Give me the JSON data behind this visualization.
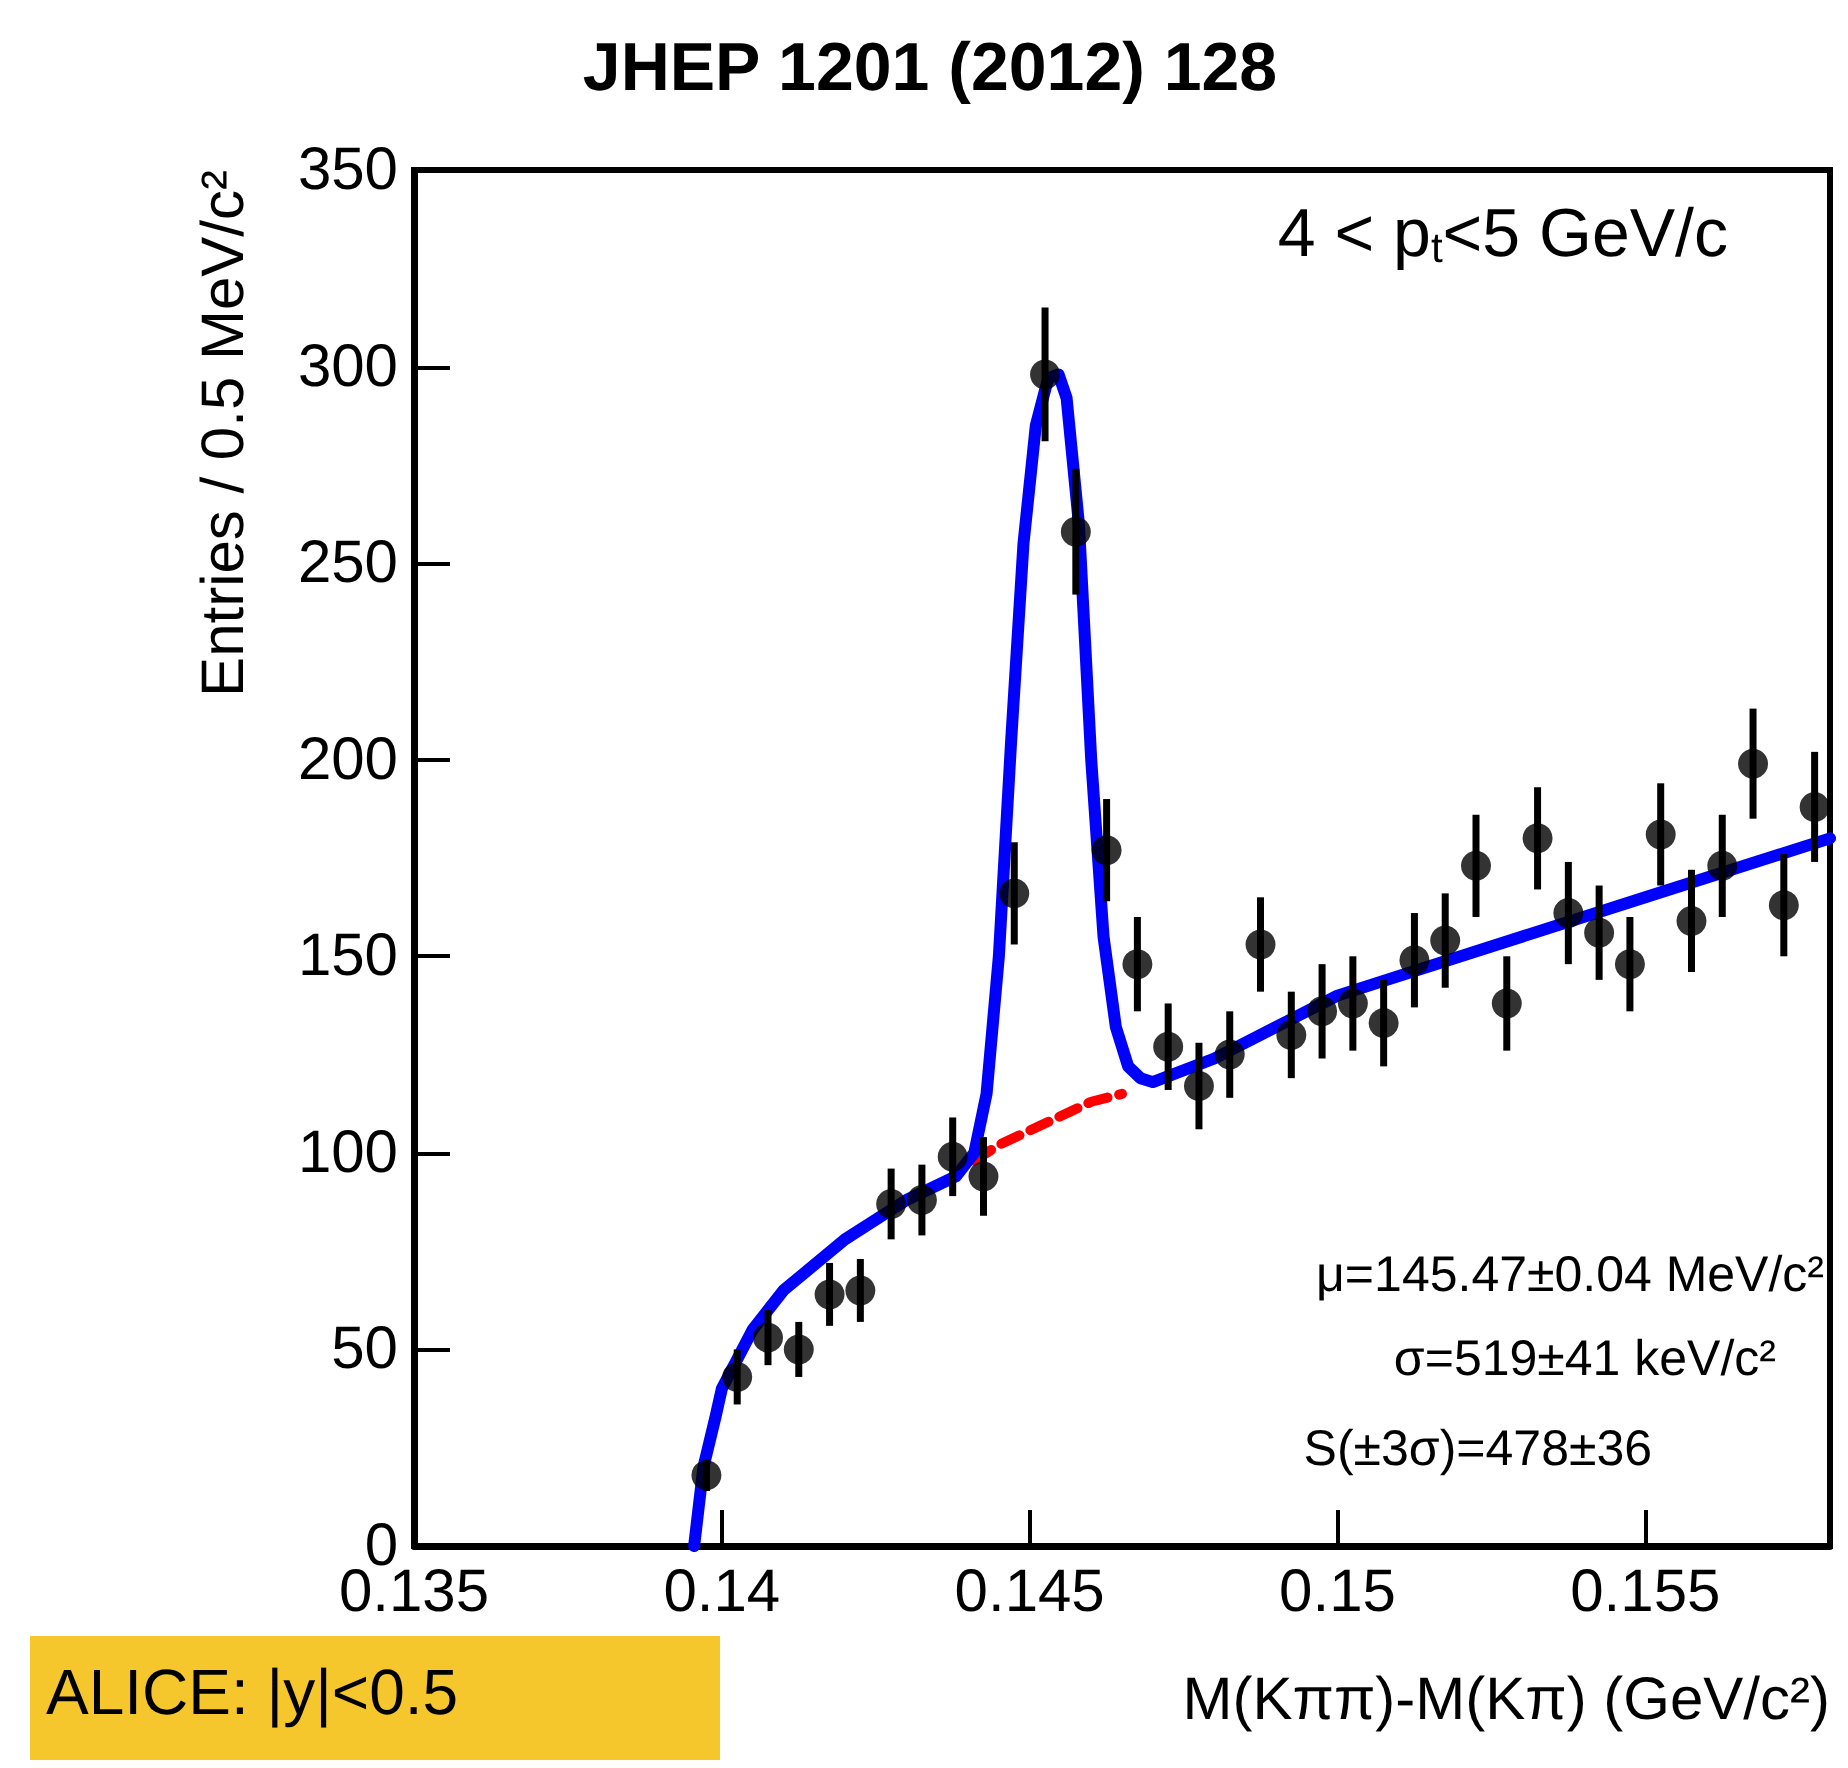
{
  "chart_data": {
    "type": "scatter",
    "title": "JHEP 1201 (2012) 128",
    "xlabel": "M(Kππ)-M(Kπ) (GeV/c²)",
    "ylabel": "Entries / 0.5 MeV/c²",
    "annotations": [
      "4 < p$_{t}$<5 GeV/c",
      "μ=145.47±0.04 MeV/c²",
      "σ=519±41 keV/c²",
      "S(±3σ)=478±36",
      "ALICE: |y|<0.5"
    ],
    "x": [
      0.13975,
      0.14025,
      0.14075,
      0.14125,
      0.14175,
      0.14225,
      0.14275,
      0.14325,
      0.14375,
      0.14425,
      0.14475,
      0.14525,
      0.14575,
      0.14625,
      0.14675,
      0.14725,
      0.14775,
      0.14825,
      0.14875,
      0.14925,
      0.14975,
      0.15025,
      0.15075,
      0.15125,
      0.15175,
      0.15225,
      0.15275,
      0.15325,
      0.15375,
      0.15425,
      0.15475,
      0.15525,
      0.15575,
      0.15625,
      0.15675,
      0.15725,
      0.15775
    ],
    "series": [
      {
        "color": "#000000",
        "marker": "circle",
        "values": [
          18,
          43,
          53,
          50,
          64,
          65,
          87,
          88,
          99,
          94,
          166,
          298,
          258,
          177,
          148,
          127,
          117,
          125,
          153,
          130,
          136,
          138,
          133,
          149,
          154,
          173,
          138,
          180,
          161,
          156,
          148,
          181,
          159,
          173,
          199,
          163,
          188
        ],
        "errors": [
          4,
          7,
          7,
          7,
          8,
          8,
          9,
          9,
          10,
          10,
          13,
          17,
          16,
          13,
          12,
          11,
          11,
          11,
          12,
          11,
          12,
          12,
          11,
          12,
          12,
          13,
          12,
          13,
          13,
          12,
          12,
          13,
          13,
          13,
          14,
          13,
          14
        ]
      },
      {
        "type": "line",
        "color": "#0000ff",
        "marker": "none",
        "line_style": "solid",
        "x": [
          0.13955,
          0.1397,
          0.1399,
          0.14,
          0.1405,
          0.141,
          0.142,
          0.143,
          0.1438,
          0.1441,
          0.1443,
          0.1445,
          0.1447,
          0.1449,
          0.1451,
          0.1453,
          0.14547,
          0.1456,
          0.1458,
          0.146,
          0.1462,
          0.1464,
          0.1466,
          0.1468,
          0.147,
          0.148,
          0.15,
          0.155,
          0.158
        ],
        "values": [
          0,
          20,
          33,
          40,
          55,
          65,
          78,
          88,
          94,
          100,
          115,
          150,
          205,
          255,
          285,
          297,
          298,
          292,
          260,
          200,
          155,
          132,
          122,
          119,
          118,
          124,
          140,
          165,
          180
        ]
      },
      {
        "type": "line",
        "color": "#ff0000",
        "marker": "none",
        "line_style": "dashed",
        "x": [
          0.1441,
          0.1445,
          0.146,
          0.1465
        ],
        "values": [
          98,
          102,
          113,
          115
        ]
      }
    ],
    "xlim": [
      0.135,
      0.158
    ],
    "xticks": [
      0.135,
      0.14,
      0.145,
      0.15,
      0.155
    ],
    "ylim": [
      0,
      350
    ],
    "yticks": [
      0,
      50,
      100,
      150,
      200,
      250,
      300,
      350
    ],
    "grid": false
  }
}
